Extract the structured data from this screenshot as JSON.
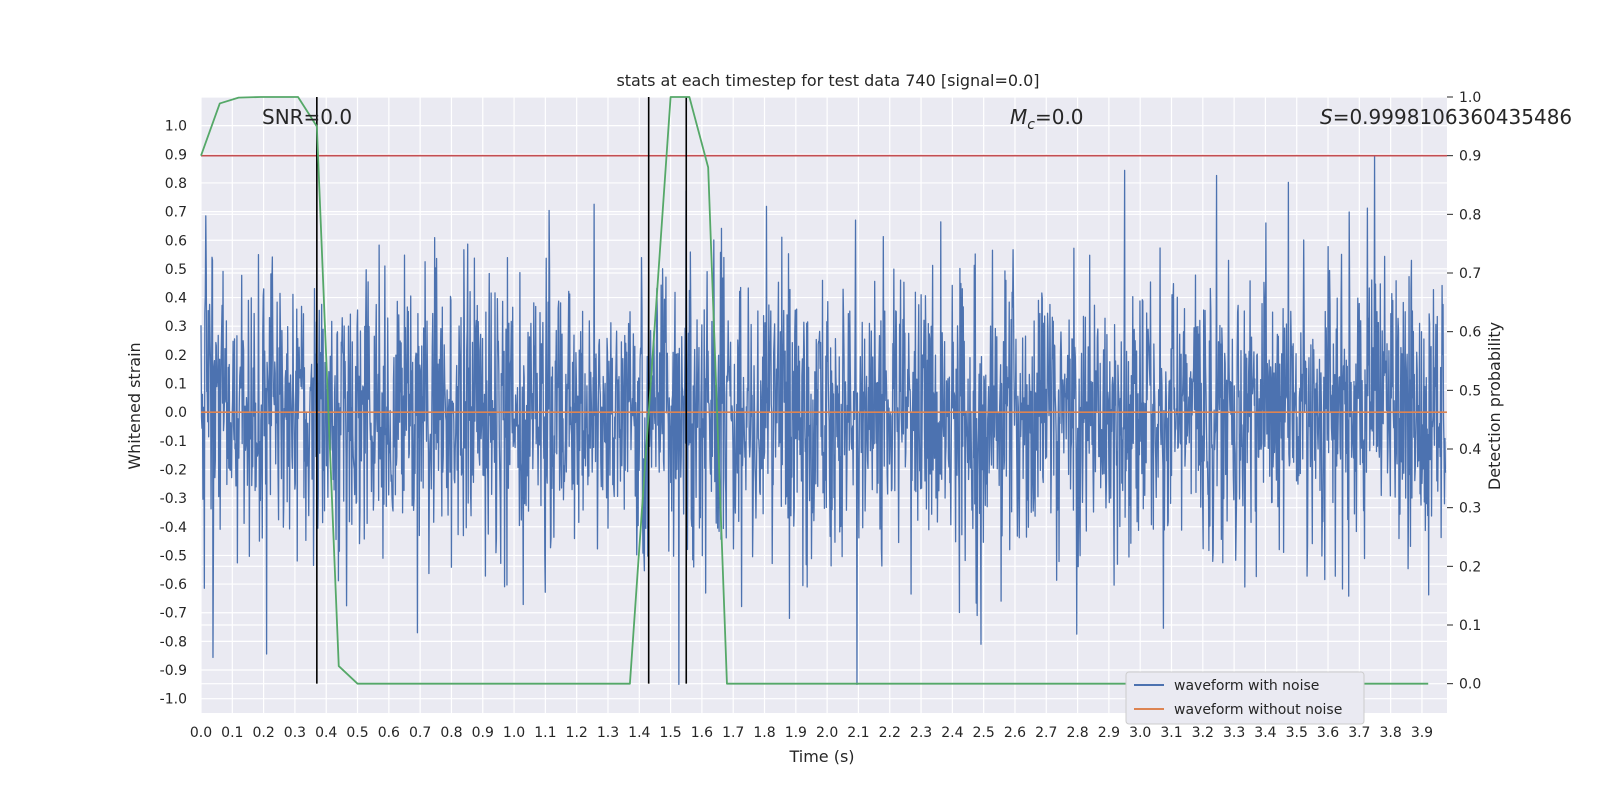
{
  "chart_data": {
    "type": "line",
    "title": "stats at each timestep for test data 740 [signal=0.0]",
    "xlabel": "Time (s)",
    "ylabel": "Whitened strain",
    "y2label": "Detection probability",
    "xlim": [
      0.0,
      3.98
    ],
    "ylim": [
      -1.05,
      1.1
    ],
    "y2lim": [
      -0.05,
      1.0
    ],
    "grid": true,
    "x_ticks": [
      "0.0",
      "0.1",
      "0.2",
      "0.3",
      "0.4",
      "0.5",
      "0.6",
      "0.7",
      "0.8",
      "0.9",
      "1.0",
      "1.1",
      "1.2",
      "1.3",
      "1.4",
      "1.5",
      "1.6",
      "1.7",
      "1.8",
      "1.9",
      "2.0",
      "2.1",
      "2.2",
      "2.3",
      "2.4",
      "2.5",
      "2.6",
      "2.7",
      "2.8",
      "2.9",
      "3.0",
      "3.1",
      "3.2",
      "3.3",
      "3.4",
      "3.5",
      "3.6",
      "3.7",
      "3.8",
      "3.9"
    ],
    "y_ticks": [
      "1.0",
      "0.9",
      "0.8",
      "0.7",
      "0.6",
      "0.5",
      "0.4",
      "0.3",
      "0.2",
      "0.1",
      "0.0",
      "-0.1",
      "-0.2",
      "-0.3",
      "-0.4",
      "-0.5",
      "-0.6",
      "-0.7",
      "-0.8",
      "-0.9",
      "-1.0"
    ],
    "y2_ticks": [
      "1.0",
      "0.9",
      "0.8",
      "0.7",
      "0.6",
      "0.5",
      "0.4",
      "0.3",
      "0.2",
      "0.1",
      "0.0"
    ],
    "annotations": {
      "snr": "SNR=0.0",
      "mc_symbol": "M",
      "mc_sub": "c",
      "mc_value": "=0.0",
      "s_symbol": "S",
      "s_value": "=0.9998106360435486"
    },
    "threshold_y2": 0.9,
    "vertical_markers_x": [
      0.37,
      1.43,
      1.55
    ],
    "vertical_marker_range_y2": [
      0.0,
      1.0
    ],
    "series": [
      {
        "name": "waveform with noise",
        "color": "#4c72b0",
        "description": "Noisy whitened strain, roughly amplitude ±0.6 with spikes to ±0.95"
      },
      {
        "name": "waveform without noise",
        "color": "#dd8452",
        "constant_value": 0.0
      },
      {
        "name": "detection probability",
        "color": "#55a868",
        "axis": "right",
        "x": [
          0.0,
          0.06,
          0.12,
          0.19,
          0.31,
          0.37,
          0.44,
          0.5,
          0.56,
          1.37,
          1.5,
          1.56,
          1.62,
          1.68,
          3.92
        ],
        "y": [
          0.9,
          0.989,
          0.999,
          1.0,
          1.0,
          0.95,
          0.03,
          0.0,
          0.0,
          0.0,
          1.0,
          1.0,
          0.88,
          0.0,
          0.0
        ]
      }
    ],
    "threshold_color": "#c44e52",
    "legend": {
      "position": "lower-right",
      "entries": [
        "waveform with noise",
        "waveform without noise"
      ]
    }
  }
}
